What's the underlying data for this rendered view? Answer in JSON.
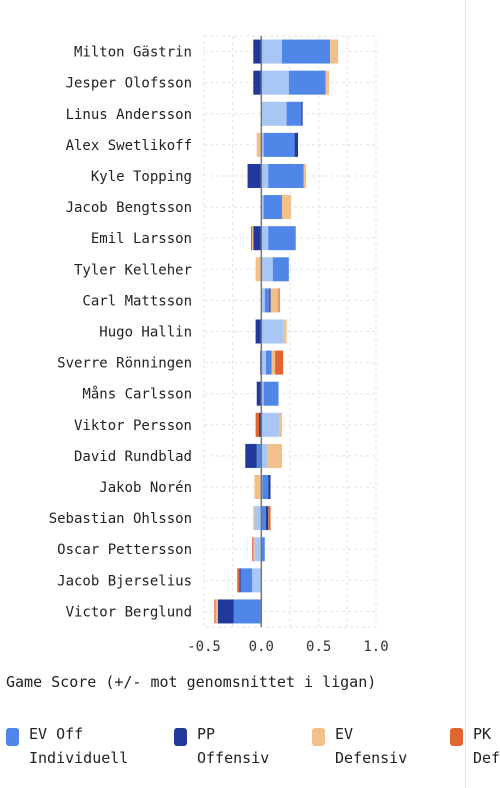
{
  "chart_data": {
    "type": "bar",
    "orientation": "horizontal",
    "stacked": true,
    "xlabel": "Game Score (+/- mot genomsnittet i ligan)",
    "xlim": [
      -0.5,
      1.0
    ],
    "xticks": [
      "-0.5",
      "0.0",
      "0.5",
      "1.0"
    ],
    "grid": true,
    "legend_position": "bottom",
    "categories": [
      "Milton Gästrin",
      "Jesper Olofsson",
      "Linus Andersson",
      "Alex Swetlikoff",
      "Kyle Topping",
      "Jacob Bengtsson",
      "Emil Larsson",
      "Tyler Kelleher",
      "Carl Mattsson",
      "Hugo Hallin",
      "Sverre Rönningen",
      "Måns Carlsson",
      "Viktor Persson",
      "David Rundblad",
      "Jakob Norén",
      "Sebastian Ohlsson",
      "Oscar Pettersson",
      "Jacob Bjerselius",
      "Victor Berglund"
    ],
    "series": [
      {
        "name": "EV Off",
        "color": "#a9c7f5",
        "values": [
          0.18,
          0.24,
          0.22,
          0.02,
          0.06,
          0.02,
          0.06,
          0.1,
          0.03,
          0.19,
          0.04,
          0.02,
          0.16,
          0.05,
          0.01,
          -0.06,
          -0.06,
          -0.08,
          -0.0
        ]
      },
      {
        "name": "Individuell",
        "color": "#4f86e8",
        "values": [
          0.42,
          0.32,
          0.13,
          0.27,
          0.31,
          0.16,
          0.24,
          0.14,
          0.04,
          0.0,
          0.05,
          0.13,
          0.0,
          -0.04,
          0.05,
          0.04,
          0.03,
          -0.1,
          -0.24
        ]
      },
      {
        "name": "PP Offensiv",
        "color": "#22399c",
        "values": [
          -0.07,
          -0.07,
          0.01,
          0.03,
          -0.12,
          0.0,
          -0.07,
          0.0,
          0.01,
          -0.05,
          -0.01,
          -0.04,
          -0.02,
          -0.1,
          0.02,
          0.02,
          0.0,
          -0.01,
          -0.14
        ]
      },
      {
        "name": "EV Defensiv",
        "color": "#f1c08b",
        "values": [
          0.07,
          0.03,
          0.0,
          -0.04,
          0.02,
          0.08,
          -0.01,
          -0.05,
          0.07,
          0.03,
          0.03,
          0.0,
          0.02,
          0.13,
          -0.06,
          -0.01,
          -0.01,
          0.0,
          -0.02
        ]
      },
      {
        "name": "PK Defensiv",
        "color": "#e0652e",
        "values": [
          0.0,
          0.0,
          0.0,
          0.0,
          0.0,
          0.0,
          -0.01,
          0.0,
          0.01,
          0.0,
          0.07,
          0.0,
          -0.03,
          0.0,
          0.0,
          0.02,
          -0.01,
          -0.02,
          -0.01
        ]
      }
    ],
    "legend": [
      {
        "line1": "EV Off",
        "line2": "Individuell",
        "color": "#4f86e8"
      },
      {
        "line1": "PP",
        "line2": "Offensiv",
        "color": "#22399c"
      },
      {
        "line1": "EV",
        "line2": "Defensiv",
        "color": "#f1c08b"
      },
      {
        "line1": "PK",
        "line2": "Def",
        "color": "#e0652e"
      }
    ]
  }
}
